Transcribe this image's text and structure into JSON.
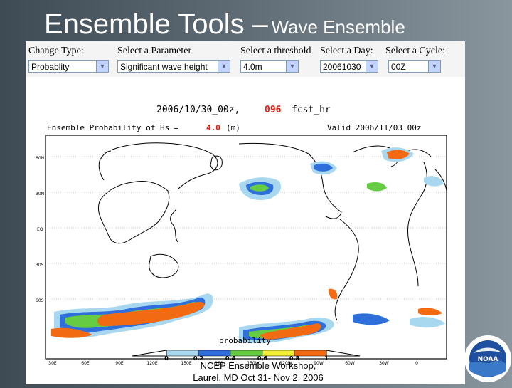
{
  "slide": {
    "title_main": "Ensemble Tools –",
    "title_sub": "Wave Ensemble",
    "footer_line1": "NCEP Ensemble Workshop,",
    "footer_line2": "Laurel, MD Oct 31- Nov 2, 2006",
    "logo_text": "NOAA"
  },
  "controls": {
    "change_type": {
      "label": "Change Type:",
      "value": "Probablity"
    },
    "parameter": {
      "label": "Select a Parameter",
      "value": "Significant wave height"
    },
    "threshold": {
      "label": "Select a threshold",
      "value": "4.0m"
    },
    "day": {
      "label": "Select a Day:",
      "value": "20061030"
    },
    "cycle": {
      "label": "Select a Cycle:",
      "value": "00Z"
    }
  },
  "map": {
    "run_date": "2006/10/30_00z,",
    "forecast_hour": "096",
    "fcst_label": "fcst_hr",
    "title_left_pre": "Ensemble Probability of Hs =",
    "threshold_value": "4.0",
    "threshold_unit": "(m)",
    "valid_label": "Valid 2006/11/03 00z",
    "lat_labels": [
      "60N",
      "30N",
      "EQ",
      "30S",
      "60S"
    ],
    "lon_labels": [
      "30E",
      "60E",
      "90E",
      "120E",
      "150E",
      "180",
      "150W",
      "120W",
      "90W",
      "60W",
      "30W",
      "0"
    ],
    "colorbar_title": "probability",
    "colorbar_ticks": [
      "0",
      "0.2",
      "0.4",
      "0.6",
      "0.8",
      "1"
    ],
    "colorbar_colors": [
      "#a8d8f0",
      "#2f6fdc",
      "#66cc44",
      "#f2ee3a",
      "#f26a12"
    ],
    "colors": {
      "highlight": "#e8190e",
      "land": "#000000",
      "high_prob": "#f26a12"
    }
  }
}
